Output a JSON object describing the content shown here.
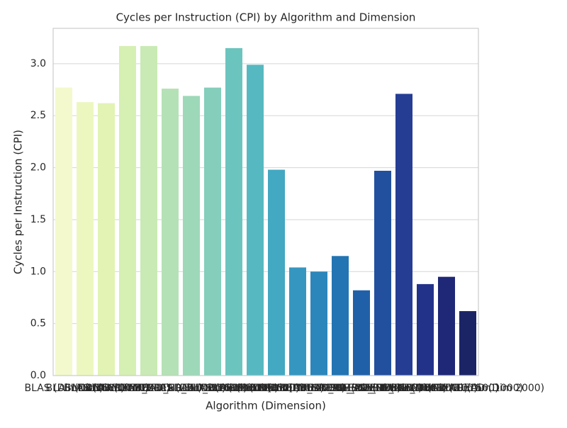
{
  "chart_data": {
    "type": "bar",
    "title": "Cycles per Instruction (CPI) by Algorithm and Dimension",
    "xlabel": "Algorithm (Dimension)",
    "ylabel": "Cycles per Instruction (CPI)",
    "categories": [
      "BLAS (Dim 100)",
      "BLAS (Dim 500)",
      "BLAS (Dim 1000)",
      "BLAS (Dim 2000)",
      "MULTITHREAD_BLAS (Dim 100)",
      "MULTITHREAD_BLAS (Dim 500)",
      "MULTITHREAD_BLAS (Dim 1000)",
      "MULTITHREAD_BLAS (Dim 2000)",
      "SIMPLE (Dim 100)",
      "SIMPLE (Dim 500)",
      "SIMPLE (Dim 1000)",
      "SIMPLE (Dim 2000)",
      "MULTITHREAD_SIMPLE (Dim 100)",
      "MULTITHREAD_SIMPLE (Dim 500)",
      "MULTITHREAD_SIMPLE (Dim 1000)",
      "MULTITHREAD_SIMPLE (Dim 2000)",
      "SSE_MULTITHREAD (Dim 100)",
      "SSE_MULTITHREAD (Dim 500)",
      "SSE_MULTITHREAD (Dim 1000)",
      "SSE_MULTITHREAD (Dim 2000)"
    ],
    "values": [
      2.77,
      2.63,
      2.62,
      3.17,
      3.17,
      2.76,
      2.69,
      2.77,
      3.15,
      2.99,
      1.98,
      1.04,
      1.0,
      1.15,
      0.82,
      1.97,
      2.71,
      0.88,
      0.95,
      0.62
    ],
    "colors": [
      "#f3f9cc",
      "#ecf7bf",
      "#e2f3b4",
      "#d6efb3",
      "#c9eab4",
      "#b5e1b6",
      "#9dd8b9",
      "#84cebb",
      "#6cc4be",
      "#56b9c1",
      "#43a8c2",
      "#3597c0",
      "#2b86bb",
      "#2274b2",
      "#2060a8",
      "#22509e",
      "#253e94",
      "#233289",
      "#1f2777",
      "#1b2566"
    ],
    "ylim": [
      0,
      3.34
    ],
    "yticks": [
      {
        "value": 0,
        "label": "0.0"
      },
      0.5,
      {
        "value": 1,
        "label": "1.0"
      },
      1.5,
      {
        "value": 2,
        "label": "2.0"
      },
      2.5,
      {
        "value": 3,
        "label": "3.0"
      }
    ],
    "grid": true
  }
}
